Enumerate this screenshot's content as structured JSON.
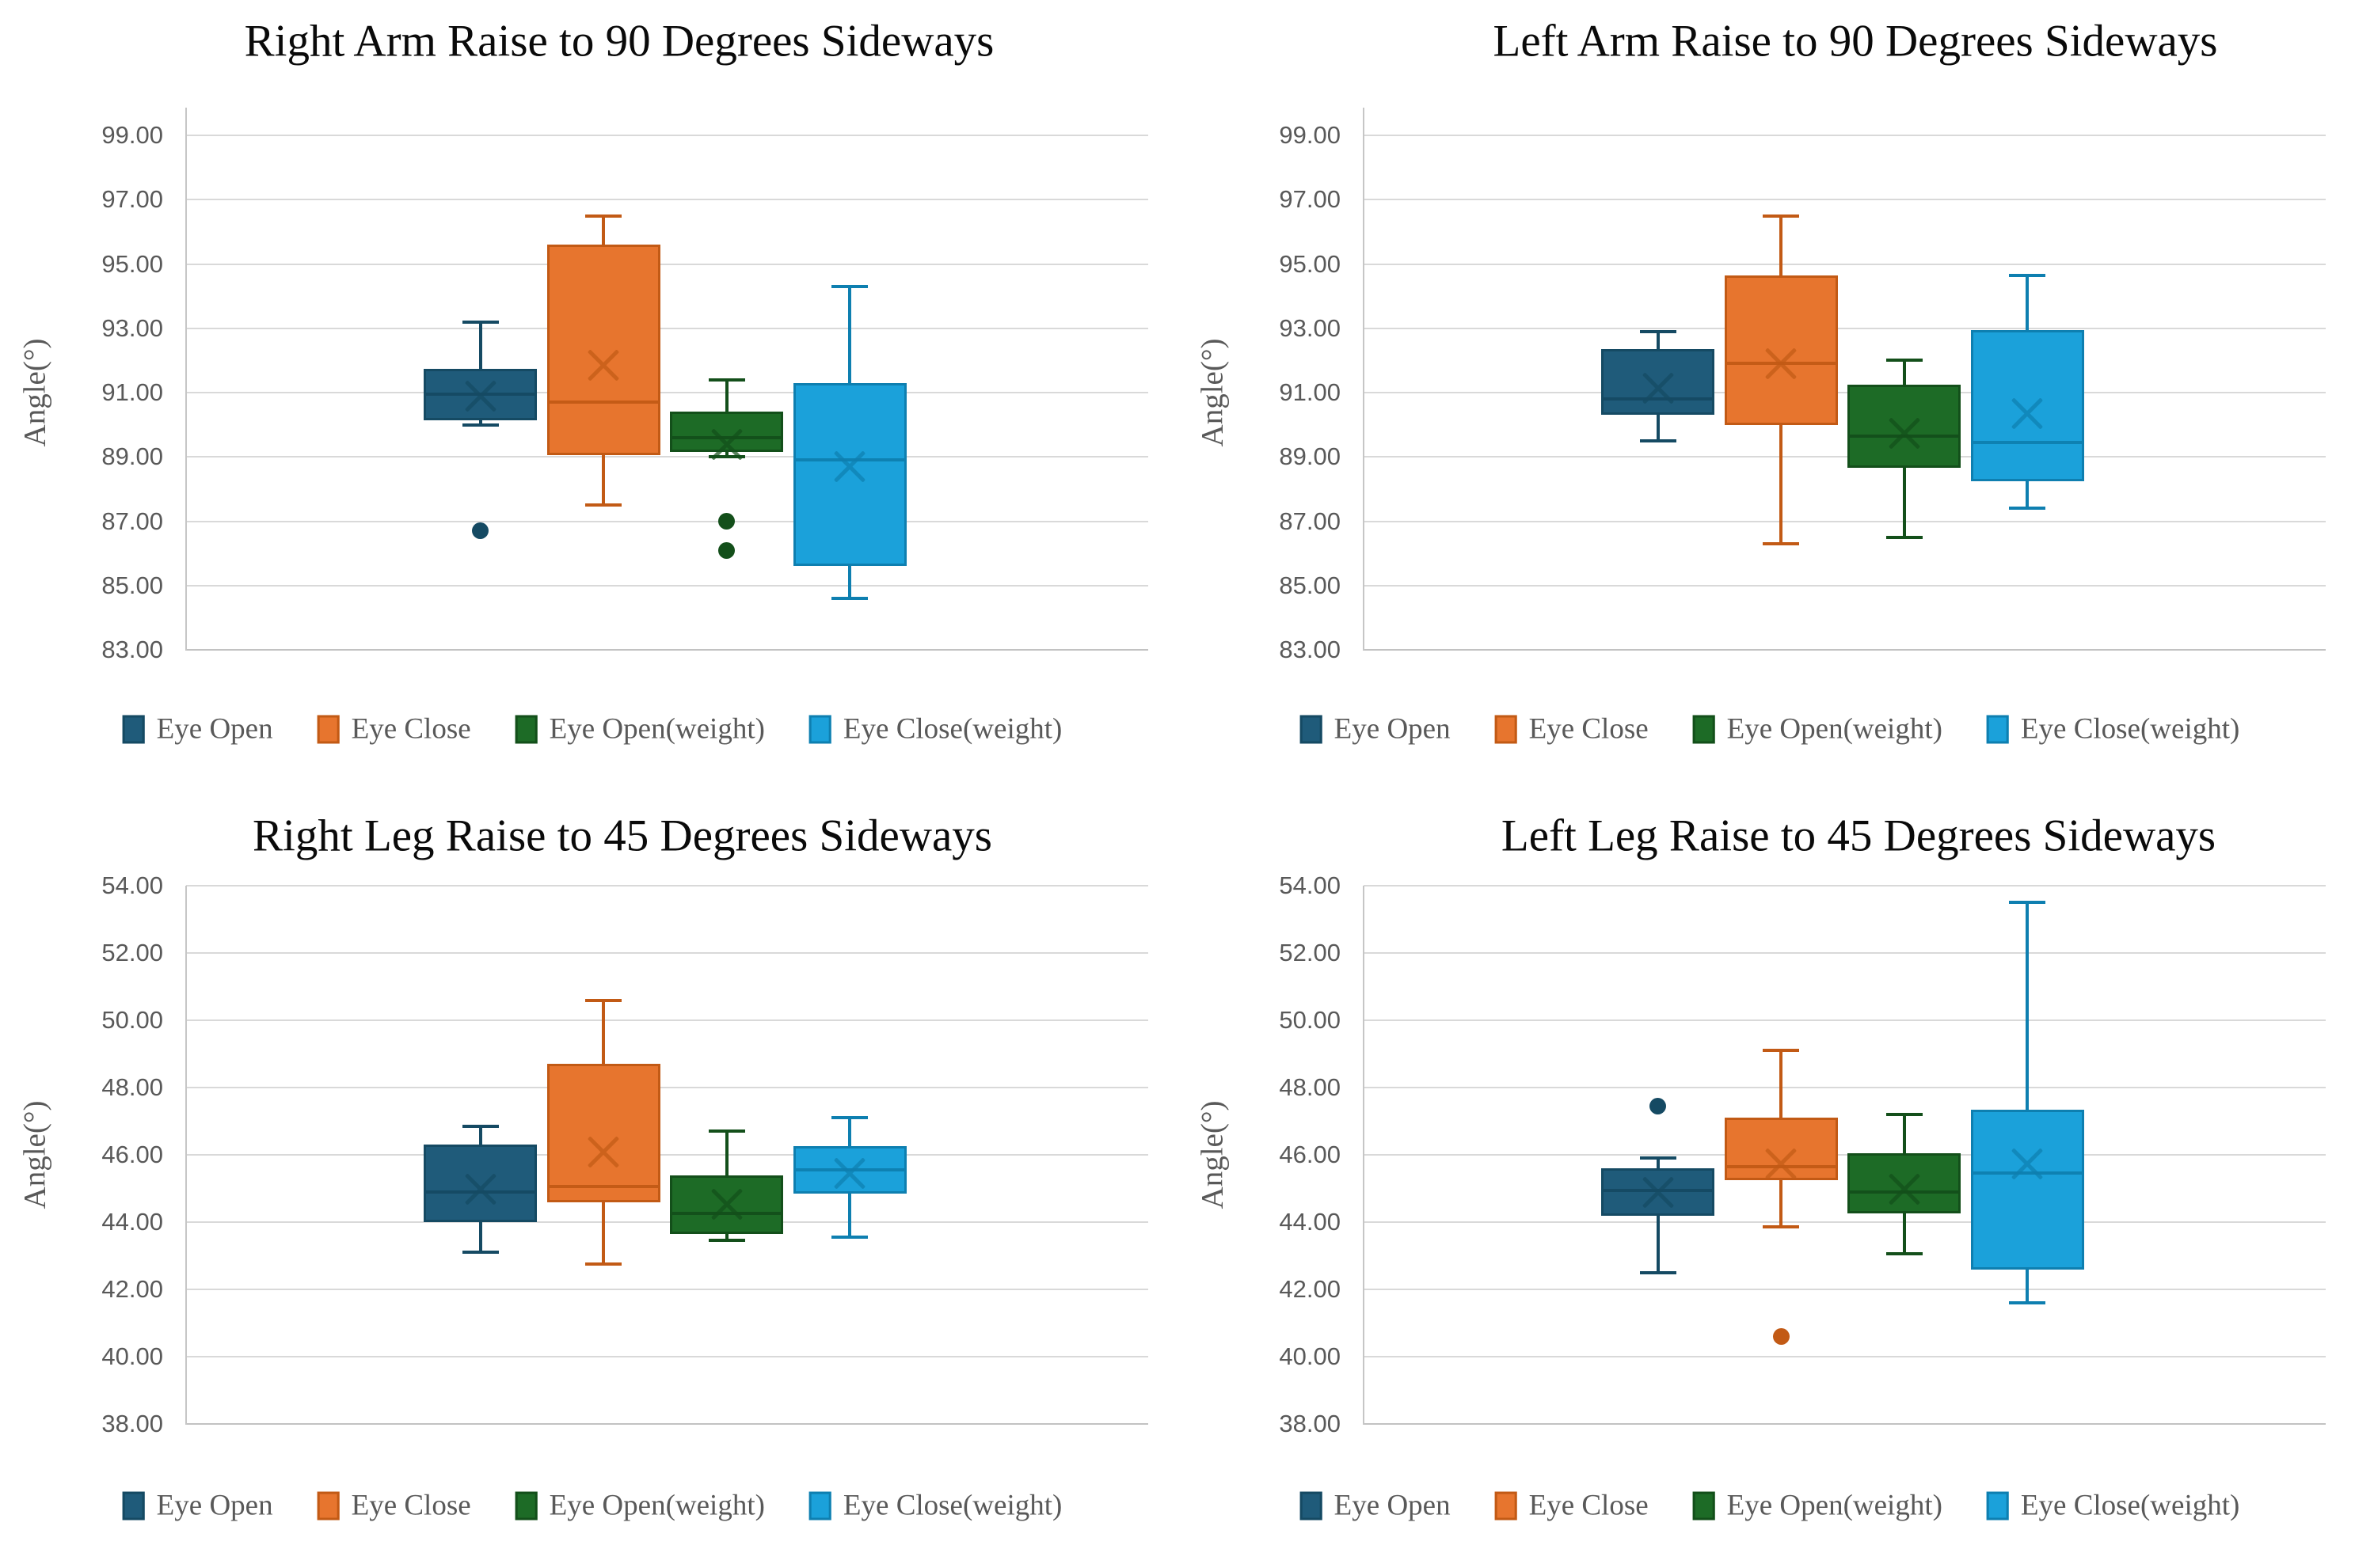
{
  "colors": {
    "background": "#ffffff",
    "grid": "#d9d9d9",
    "axis_line": "#c6c6c6",
    "title_text": "#0a0a0a",
    "muted_text": "#595959",
    "series": {
      "eye_open": {
        "fill": "#1f5b7a",
        "edge": "#154a63"
      },
      "eye_close": {
        "fill": "#e7752e",
        "edge": "#c25a15"
      },
      "eye_open_weight": {
        "fill": "#1d6b26",
        "edge": "#134f1a"
      },
      "eye_close_weight": {
        "fill": "#1ba1da",
        "edge": "#0e7fb0"
      }
    }
  },
  "chart_data": [
    {
      "type": "box",
      "title": "Right Arm Raise to 90 Degrees Sideways",
      "y_axis": {
        "label": "Angle(°)",
        "min": 83,
        "max": 99,
        "tick_step": 2,
        "ticks": [
          "99.00",
          "97.00",
          "95.00",
          "93.00",
          "91.00",
          "89.00",
          "87.00",
          "85.00",
          "83.00"
        ]
      },
      "legend_position": "bottom",
      "grid": "horizontal",
      "series": [
        {
          "name": "Eye Open",
          "color": "eye_open",
          "whisker_low": 90.0,
          "q1": 90.15,
          "median": 90.95,
          "q3": 91.75,
          "whisker_high": 93.2,
          "mean": 90.9,
          "outliers": [
            86.7
          ]
        },
        {
          "name": "Eye Close",
          "color": "eye_close",
          "whisker_low": 87.5,
          "q1": 89.05,
          "median": 90.7,
          "q3": 95.6,
          "whisker_high": 96.5,
          "mean": 91.85,
          "outliers": []
        },
        {
          "name": "Eye Open(weight)",
          "color": "eye_open_weight",
          "whisker_low": 89.0,
          "q1": 89.15,
          "median": 89.6,
          "q3": 90.4,
          "whisker_high": 91.4,
          "mean": 89.4,
          "outliers": [
            87.0,
            86.1
          ]
        },
        {
          "name": "Eye Close(weight)",
          "color": "eye_close_weight",
          "whisker_low": 84.6,
          "q1": 85.6,
          "median": 88.9,
          "q3": 91.3,
          "whisker_high": 94.3,
          "mean": 88.7,
          "outliers": []
        }
      ]
    },
    {
      "type": "box",
      "title": "Left Arm Raise to 90 Degrees Sideways",
      "y_axis": {
        "label": "Angle(°)",
        "min": 83,
        "max": 99,
        "tick_step": 2,
        "ticks": [
          "99.00",
          "97.00",
          "95.00",
          "93.00",
          "91.00",
          "89.00",
          "87.00",
          "85.00",
          "83.00"
        ]
      },
      "legend_position": "bottom",
      "grid": "horizontal",
      "series": [
        {
          "name": "Eye Open",
          "color": "eye_open",
          "whisker_low": 89.5,
          "q1": 90.3,
          "median": 90.8,
          "q3": 92.35,
          "whisker_high": 92.9,
          "mean": 91.15,
          "outliers": []
        },
        {
          "name": "Eye Close",
          "color": "eye_close",
          "whisker_low": 86.3,
          "q1": 90.0,
          "median": 91.9,
          "q3": 94.65,
          "whisker_high": 96.5,
          "mean": 91.9,
          "outliers": []
        },
        {
          "name": "Eye Open(weight)",
          "color": "eye_open_weight",
          "whisker_low": 86.5,
          "q1": 88.65,
          "median": 89.65,
          "q3": 91.25,
          "whisker_high": 92.0,
          "mean": 89.75,
          "outliers": []
        },
        {
          "name": "Eye Close(weight)",
          "color": "eye_close_weight",
          "whisker_low": 87.4,
          "q1": 88.25,
          "median": 89.45,
          "q3": 92.95,
          "whisker_high": 94.65,
          "mean": 90.35,
          "outliers": []
        }
      ]
    },
    {
      "type": "box",
      "title": "Right Leg Raise to 45 Degrees Sideways",
      "y_axis": {
        "label": "Angle(°)",
        "min": 38,
        "max": 54,
        "tick_step": 2,
        "ticks": [
          "54.00",
          "52.00",
          "50.00",
          "48.00",
          "46.00",
          "44.00",
          "42.00",
          "40.00",
          "38.00"
        ]
      },
      "legend_position": "bottom",
      "grid": "horizontal",
      "series": [
        {
          "name": "Eye Open",
          "color": "eye_open",
          "whisker_low": 43.1,
          "q1": 44.0,
          "median": 44.9,
          "q3": 46.3,
          "whisker_high": 46.85,
          "mean": 45.0,
          "outliers": []
        },
        {
          "name": "Eye Close",
          "color": "eye_close",
          "whisker_low": 42.75,
          "q1": 44.6,
          "median": 45.05,
          "q3": 48.7,
          "whisker_high": 50.6,
          "mean": 46.1,
          "outliers": []
        },
        {
          "name": "Eye Open(weight)",
          "color": "eye_open_weight",
          "whisker_low": 43.45,
          "q1": 43.65,
          "median": 44.25,
          "q3": 45.4,
          "whisker_high": 46.7,
          "mean": 44.55,
          "outliers": []
        },
        {
          "name": "Eye Close(weight)",
          "color": "eye_close_weight",
          "whisker_low": 43.55,
          "q1": 44.85,
          "median": 45.55,
          "q3": 46.25,
          "whisker_high": 47.1,
          "mean": 45.45,
          "outliers": []
        }
      ]
    },
    {
      "type": "box",
      "title": "Left Leg Raise to 45 Degrees Sideways",
      "y_axis": {
        "label": "Angle(°)",
        "min": 38,
        "max": 54,
        "tick_step": 2,
        "ticks": [
          "54.00",
          "52.00",
          "50.00",
          "48.00",
          "46.00",
          "44.00",
          "42.00",
          "40.00",
          "38.00"
        ]
      },
      "legend_position": "bottom",
      "grid": "horizontal",
      "series": [
        {
          "name": "Eye Open",
          "color": "eye_open",
          "whisker_low": 42.5,
          "q1": 44.2,
          "median": 44.95,
          "q3": 45.6,
          "whisker_high": 45.9,
          "mean": 44.9,
          "outliers": [
            47.45
          ]
        },
        {
          "name": "Eye Close",
          "color": "eye_close",
          "whisker_low": 43.85,
          "q1": 45.25,
          "median": 45.65,
          "q3": 47.1,
          "whisker_high": 49.1,
          "mean": 45.75,
          "outliers": [
            40.6
          ]
        },
        {
          "name": "Eye Open(weight)",
          "color": "eye_open_weight",
          "whisker_low": 43.05,
          "q1": 44.25,
          "median": 44.9,
          "q3": 46.05,
          "whisker_high": 47.2,
          "mean": 45.0,
          "outliers": []
        },
        {
          "name": "Eye Close(weight)",
          "color": "eye_close_weight",
          "whisker_low": 41.6,
          "q1": 42.6,
          "median": 45.45,
          "q3": 47.35,
          "whisker_high": 53.5,
          "mean": 45.75,
          "outliers": []
        }
      ]
    }
  ]
}
